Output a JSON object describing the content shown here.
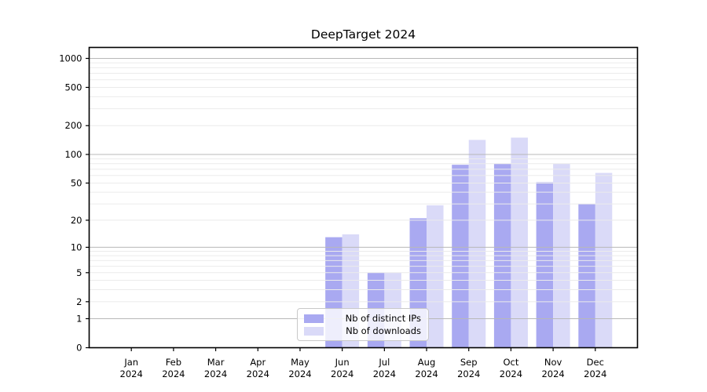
{
  "chart_data": {
    "type": "bar",
    "title": "DeepTarget 2024",
    "xlabel": "",
    "ylabel": "",
    "y_scale": "log(1+y)",
    "ylim": [
      0,
      1300
    ],
    "grid": "horizontal",
    "legend_position": "lower-center",
    "categories": [
      {
        "month": "Jan",
        "year": "2024"
      },
      {
        "month": "Feb",
        "year": "2024"
      },
      {
        "month": "Mar",
        "year": "2024"
      },
      {
        "month": "Apr",
        "year": "2024"
      },
      {
        "month": "May",
        "year": "2024"
      },
      {
        "month": "Jun",
        "year": "2024"
      },
      {
        "month": "Jul",
        "year": "2024"
      },
      {
        "month": "Aug",
        "year": "2024"
      },
      {
        "month": "Sep",
        "year": "2024"
      },
      {
        "month": "Oct",
        "year": "2024"
      },
      {
        "month": "Nov",
        "year": "2024"
      },
      {
        "month": "Dec",
        "year": "2024"
      }
    ],
    "series": [
      {
        "name": "Nb of distinct IPs",
        "color": "#a9a9f1",
        "values": [
          0,
          0,
          0,
          0,
          0,
          13,
          5,
          21,
          78,
          80,
          51,
          30
        ]
      },
      {
        "name": "Nb of downloads",
        "color": "#dadaf8",
        "values": [
          0,
          0,
          0,
          0,
          0,
          14,
          5,
          29,
          142,
          150,
          80,
          64
        ]
      }
    ],
    "y_tick_values": [
      0,
      1,
      2,
      5,
      10,
      20,
      50,
      100,
      200,
      500,
      1000
    ],
    "y_tick_labels": [
      "0",
      "1",
      "2",
      "5",
      "10",
      "20",
      "50",
      "100",
      "200",
      "500",
      "1000"
    ]
  },
  "colors": {
    "spine": "#000000",
    "major_grid": "#b8b8b8",
    "minor_grid": "#ebebeb",
    "tick_label": "#000000",
    "legend_border": "#c9c9c9"
  }
}
